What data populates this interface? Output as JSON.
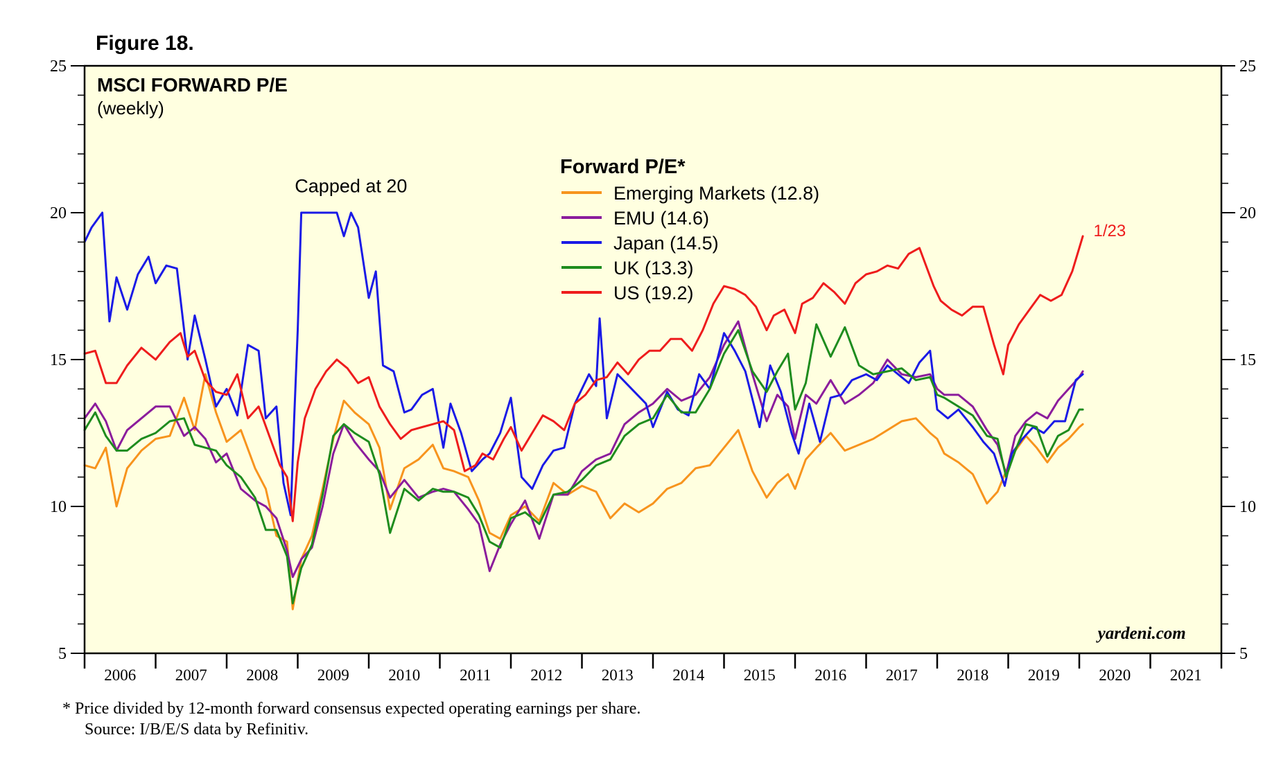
{
  "figure_label": "Figure 18.",
  "footnote": {
    "definition": "*   Price divided by 12-month forward consensus expected operating earnings per share.",
    "source": "Source: I/B/E/S data by Refinitiv."
  },
  "chart_data": {
    "type": "line",
    "title": "MSCI FORWARD P/E",
    "subtitle": "(weekly)",
    "legend_title": "Forward P/E*",
    "legend_position": "top-center",
    "xlabel": "",
    "ylabel": "",
    "ylim": [
      5,
      25
    ],
    "xlim": [
      2006,
      2022
    ],
    "y_ticks": [
      5,
      10,
      15,
      20,
      25
    ],
    "x_tick_labels": [
      "2006",
      "2007",
      "2008",
      "2009",
      "2010",
      "2011",
      "2012",
      "2013",
      "2014",
      "2015",
      "2016",
      "2017",
      "2018",
      "2019",
      "2020",
      "2021"
    ],
    "background_color": "#FFFFE0",
    "annotations": [
      {
        "text": "Capped at 20",
        "x": 2009.75,
        "y": 20.7
      },
      {
        "text": "1/23",
        "x": 2020.2,
        "y": 19.2,
        "color": "#EE1C1C"
      },
      {
        "text": "yardeni.com",
        "x": 2021.5,
        "y": 5.5
      }
    ],
    "series": [
      {
        "name": "Emerging Markets (12.8)",
        "color": "#F7941D",
        "x": [
          2006.0,
          2006.15,
          2006.3,
          2006.45,
          2006.6,
          2006.8,
          2007.0,
          2007.2,
          2007.4,
          2007.55,
          2007.7,
          2007.85,
          2008.0,
          2008.2,
          2008.4,
          2008.55,
          2008.7,
          2008.85,
          2008.93,
          2009.05,
          2009.2,
          2009.35,
          2009.5,
          2009.65,
          2009.8,
          2010.0,
          2010.15,
          2010.3,
          2010.5,
          2010.7,
          2010.9,
          2011.05,
          2011.2,
          2011.4,
          2011.55,
          2011.7,
          2011.85,
          2012.0,
          2012.2,
          2012.4,
          2012.6,
          2012.8,
          2013.0,
          2013.2,
          2013.4,
          2013.6,
          2013.8,
          2014.0,
          2014.2,
          2014.4,
          2014.6,
          2014.8,
          2015.0,
          2015.2,
          2015.4,
          2015.6,
          2015.75,
          2015.9,
          2016.0,
          2016.15,
          2016.3,
          2016.5,
          2016.7,
          2016.9,
          2017.1,
          2017.3,
          2017.5,
          2017.7,
          2017.9,
          2018.0,
          2018.1,
          2018.3,
          2018.5,
          2018.7,
          2018.85,
          2018.97,
          2019.1,
          2019.25,
          2019.4,
          2019.55,
          2019.7,
          2019.85,
          2020.0,
          2020.05
        ],
        "values": [
          11.4,
          11.3,
          12.0,
          10.0,
          11.3,
          11.9,
          12.3,
          12.4,
          13.7,
          12.6,
          14.5,
          13.2,
          12.2,
          12.6,
          11.3,
          10.6,
          9.0,
          8.8,
          6.5,
          8.2,
          9.0,
          10.6,
          12.3,
          13.6,
          13.2,
          12.8,
          12.0,
          9.9,
          11.3,
          11.6,
          12.1,
          11.3,
          11.2,
          11.0,
          10.2,
          9.1,
          8.9,
          9.7,
          10.0,
          9.5,
          10.8,
          10.4,
          10.7,
          10.5,
          9.6,
          10.1,
          9.8,
          10.1,
          10.6,
          10.8,
          11.3,
          11.4,
          12.0,
          12.6,
          11.2,
          10.3,
          10.8,
          11.1,
          10.6,
          11.6,
          12.0,
          12.5,
          11.9,
          12.1,
          12.3,
          12.6,
          12.9,
          13.0,
          12.5,
          12.3,
          11.8,
          11.5,
          11.1,
          10.1,
          10.5,
          11.2,
          11.9,
          12.4,
          12.0,
          11.5,
          12.0,
          12.3,
          12.7,
          12.8
        ]
      },
      {
        "name": "EMU (14.6)",
        "color": "#8B1C9C",
        "x": [
          2006.0,
          2006.15,
          2006.3,
          2006.45,
          2006.6,
          2006.8,
          2007.0,
          2007.2,
          2007.4,
          2007.55,
          2007.7,
          2007.85,
          2008.0,
          2008.2,
          2008.4,
          2008.55,
          2008.7,
          2008.85,
          2008.93,
          2009.05,
          2009.2,
          2009.35,
          2009.5,
          2009.65,
          2009.8,
          2010.0,
          2010.15,
          2010.3,
          2010.5,
          2010.7,
          2010.9,
          2011.05,
          2011.2,
          2011.4,
          2011.55,
          2011.7,
          2011.85,
          2012.0,
          2012.2,
          2012.4,
          2012.6,
          2012.8,
          2013.0,
          2013.2,
          2013.4,
          2013.6,
          2013.8,
          2014.0,
          2014.2,
          2014.4,
          2014.6,
          2014.8,
          2015.0,
          2015.2,
          2015.4,
          2015.6,
          2015.75,
          2015.9,
          2016.0,
          2016.15,
          2016.3,
          2016.5,
          2016.7,
          2016.9,
          2017.1,
          2017.3,
          2017.5,
          2017.7,
          2017.9,
          2018.0,
          2018.1,
          2018.3,
          2018.5,
          2018.7,
          2018.85,
          2018.97,
          2019.1,
          2019.25,
          2019.4,
          2019.55,
          2019.7,
          2019.85,
          2020.0,
          2020.05
        ],
        "values": [
          13.0,
          13.5,
          12.9,
          11.9,
          12.6,
          13.0,
          13.4,
          13.4,
          12.4,
          12.7,
          12.3,
          11.5,
          11.8,
          10.6,
          10.2,
          10.0,
          9.6,
          8.5,
          7.6,
          8.2,
          8.6,
          10.0,
          11.8,
          12.8,
          12.2,
          11.6,
          11.2,
          10.3,
          10.9,
          10.3,
          10.5,
          10.6,
          10.5,
          9.9,
          9.4,
          7.8,
          8.7,
          9.4,
          10.2,
          8.9,
          10.4,
          10.4,
          11.2,
          11.6,
          11.8,
          12.8,
          13.2,
          13.5,
          14.0,
          13.6,
          13.8,
          14.4,
          15.5,
          16.3,
          14.5,
          12.9,
          13.8,
          13.4,
          12.3,
          13.8,
          13.5,
          14.3,
          13.5,
          13.8,
          14.2,
          15.0,
          14.5,
          14.4,
          14.5,
          14.0,
          13.8,
          13.8,
          13.4,
          12.6,
          12.1,
          11.1,
          12.4,
          12.9,
          13.2,
          13.0,
          13.6,
          14.0,
          14.4,
          14.6
        ]
      },
      {
        "name": "Japan (14.5)",
        "color": "#1A1AE6",
        "x": [
          2006.0,
          2006.1,
          2006.25,
          2006.35,
          2006.45,
          2006.6,
          2006.75,
          2006.9,
          2007.0,
          2007.15,
          2007.3,
          2007.45,
          2007.55,
          2007.7,
          2007.85,
          2008.0,
          2008.15,
          2008.3,
          2008.45,
          2008.55,
          2008.7,
          2008.8,
          2008.9,
          2008.95,
          2009.0,
          2009.05,
          2009.1,
          2009.25,
          2009.4,
          2009.55,
          2009.65,
          2009.75,
          2009.85,
          2010.0,
          2010.1,
          2010.2,
          2010.35,
          2010.5,
          2010.6,
          2010.75,
          2010.9,
          2011.05,
          2011.15,
          2011.3,
          2011.45,
          2011.6,
          2011.7,
          2011.85,
          2012.0,
          2012.15,
          2012.3,
          2012.45,
          2012.6,
          2012.75,
          2012.9,
          2013.0,
          2013.1,
          2013.2,
          2013.25,
          2013.35,
          2013.5,
          2013.7,
          2013.9,
          2014.0,
          2014.2,
          2014.35,
          2014.5,
          2014.65,
          2014.8,
          2015.0,
          2015.15,
          2015.3,
          2015.5,
          2015.65,
          2015.8,
          2015.95,
          2016.05,
          2016.2,
          2016.35,
          2016.5,
          2016.65,
          2016.8,
          2017.0,
          2017.15,
          2017.3,
          2017.45,
          2017.6,
          2017.75,
          2017.9,
          2018.0,
          2018.15,
          2018.3,
          2018.5,
          2018.65,
          2018.8,
          2018.95,
          2019.05,
          2019.2,
          2019.35,
          2019.5,
          2019.65,
          2019.8,
          2019.95,
          2020.05
        ],
        "values": [
          19.0,
          19.5,
          20.0,
          16.3,
          17.8,
          16.7,
          17.9,
          18.5,
          17.6,
          18.2,
          18.1,
          15.0,
          16.5,
          15.0,
          13.4,
          14.0,
          13.1,
          15.5,
          15.3,
          13.0,
          13.4,
          10.8,
          9.7,
          13.0,
          16.0,
          20.0,
          20.0,
          20.0,
          20.0,
          20.0,
          19.2,
          20.0,
          19.5,
          17.1,
          18.0,
          14.8,
          14.6,
          13.2,
          13.3,
          13.8,
          14.0,
          12.0,
          13.5,
          12.5,
          11.2,
          11.6,
          11.8,
          12.5,
          13.7,
          11.0,
          10.6,
          11.4,
          11.9,
          12.0,
          13.5,
          14.0,
          14.5,
          14.1,
          16.4,
          13.0,
          14.5,
          14.0,
          13.5,
          12.7,
          13.9,
          13.3,
          13.1,
          14.5,
          14.0,
          15.9,
          15.3,
          14.6,
          12.7,
          14.8,
          13.9,
          12.5,
          11.8,
          13.5,
          12.2,
          13.7,
          13.8,
          14.3,
          14.5,
          14.3,
          14.8,
          14.5,
          14.2,
          14.9,
          15.3,
          13.3,
          13.0,
          13.3,
          12.7,
          12.2,
          11.8,
          10.7,
          11.8,
          12.3,
          12.7,
          12.5,
          12.9,
          12.9,
          14.3,
          14.5
        ]
      },
      {
        "name": "UK (13.3)",
        "color": "#1E8C1E",
        "x": [
          2006.0,
          2006.15,
          2006.3,
          2006.45,
          2006.6,
          2006.8,
          2007.0,
          2007.2,
          2007.4,
          2007.55,
          2007.7,
          2007.85,
          2008.0,
          2008.2,
          2008.4,
          2008.55,
          2008.7,
          2008.85,
          2008.93,
          2009.05,
          2009.2,
          2009.35,
          2009.5,
          2009.65,
          2009.8,
          2010.0,
          2010.15,
          2010.3,
          2010.5,
          2010.7,
          2010.9,
          2011.05,
          2011.2,
          2011.4,
          2011.55,
          2011.7,
          2011.85,
          2012.0,
          2012.2,
          2012.4,
          2012.6,
          2012.8,
          2013.0,
          2013.2,
          2013.4,
          2013.6,
          2013.8,
          2014.0,
          2014.2,
          2014.4,
          2014.6,
          2014.8,
          2015.0,
          2015.2,
          2015.4,
          2015.6,
          2015.75,
          2015.9,
          2016.0,
          2016.15,
          2016.3,
          2016.5,
          2016.7,
          2016.9,
          2017.1,
          2017.3,
          2017.5,
          2017.7,
          2017.9,
          2018.0,
          2018.1,
          2018.3,
          2018.5,
          2018.7,
          2018.85,
          2018.97,
          2019.1,
          2019.25,
          2019.4,
          2019.55,
          2019.7,
          2019.85,
          2020.0,
          2020.05
        ],
        "values": [
          12.6,
          13.2,
          12.4,
          11.9,
          11.9,
          12.3,
          12.5,
          12.9,
          13.0,
          12.1,
          12.0,
          11.9,
          11.4,
          11.0,
          10.3,
          9.2,
          9.2,
          8.3,
          6.7,
          7.9,
          8.7,
          10.4,
          12.4,
          12.8,
          12.5,
          12.2,
          11.1,
          9.1,
          10.6,
          10.2,
          10.6,
          10.5,
          10.5,
          10.3,
          9.7,
          8.8,
          8.6,
          9.6,
          9.8,
          9.4,
          10.4,
          10.5,
          10.9,
          11.4,
          11.6,
          12.4,
          12.8,
          13.0,
          13.8,
          13.2,
          13.2,
          14.0,
          15.2,
          16.0,
          14.6,
          13.9,
          14.6,
          15.2,
          13.3,
          14.2,
          16.2,
          15.1,
          16.1,
          14.8,
          14.5,
          14.6,
          14.7,
          14.3,
          14.4,
          13.8,
          13.7,
          13.4,
          13.1,
          12.4,
          12.3,
          11.0,
          11.9,
          12.8,
          12.7,
          11.7,
          12.4,
          12.6,
          13.3,
          13.3
        ]
      },
      {
        "name": "US (19.2)",
        "color": "#EE1C1C",
        "x": [
          2006.0,
          2006.15,
          2006.3,
          2006.45,
          2006.6,
          2006.8,
          2007.0,
          2007.2,
          2007.35,
          2007.45,
          2007.55,
          2007.7,
          2007.85,
          2008.0,
          2008.15,
          2008.3,
          2008.45,
          2008.6,
          2008.75,
          2008.85,
          2008.93,
          2009.0,
          2009.1,
          2009.25,
          2009.4,
          2009.55,
          2009.7,
          2009.85,
          2010.0,
          2010.15,
          2010.3,
          2010.45,
          2010.6,
          2010.75,
          2010.9,
          2011.05,
          2011.2,
          2011.35,
          2011.5,
          2011.6,
          2011.75,
          2011.9,
          2012.0,
          2012.15,
          2012.3,
          2012.45,
          2012.6,
          2012.75,
          2012.9,
          2013.05,
          2013.2,
          2013.35,
          2013.5,
          2013.65,
          2013.8,
          2013.95,
          2014.1,
          2014.25,
          2014.4,
          2014.55,
          2014.7,
          2014.85,
          2015.0,
          2015.15,
          2015.3,
          2015.45,
          2015.6,
          2015.7,
          2015.85,
          2016.0,
          2016.1,
          2016.25,
          2016.4,
          2016.55,
          2016.7,
          2016.85,
          2017.0,
          2017.15,
          2017.3,
          2017.45,
          2017.6,
          2017.75,
          2017.95,
          2018.05,
          2018.2,
          2018.35,
          2018.5,
          2018.65,
          2018.8,
          2018.93,
          2019.0,
          2019.15,
          2019.3,
          2019.45,
          2019.6,
          2019.75,
          2019.9,
          2020.0,
          2020.05
        ],
        "values": [
          15.2,
          15.3,
          14.2,
          14.2,
          14.8,
          15.4,
          15.0,
          15.6,
          15.9,
          15.1,
          15.3,
          14.3,
          13.9,
          13.8,
          14.5,
          13.0,
          13.4,
          12.4,
          11.4,
          11.0,
          9.5,
          11.5,
          13.0,
          14.0,
          14.6,
          15.0,
          14.7,
          14.2,
          14.4,
          13.4,
          12.8,
          12.3,
          12.6,
          12.7,
          12.8,
          12.9,
          12.6,
          11.2,
          11.4,
          11.8,
          11.6,
          12.3,
          12.7,
          11.9,
          12.5,
          13.1,
          12.9,
          12.6,
          13.5,
          13.8,
          14.3,
          14.4,
          14.9,
          14.5,
          15.0,
          15.3,
          15.3,
          15.7,
          15.7,
          15.3,
          16.0,
          16.9,
          17.5,
          17.4,
          17.2,
          16.8,
          16.0,
          16.5,
          16.7,
          15.9,
          16.9,
          17.1,
          17.6,
          17.3,
          16.9,
          17.6,
          17.9,
          18.0,
          18.2,
          18.1,
          18.6,
          18.8,
          17.5,
          17.0,
          16.7,
          16.5,
          16.8,
          16.8,
          15.5,
          14.5,
          15.5,
          16.2,
          16.7,
          17.2,
          17.0,
          17.2,
          18.0,
          18.8,
          19.2
        ]
      }
    ]
  }
}
